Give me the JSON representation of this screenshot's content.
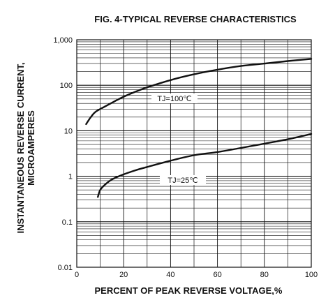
{
  "chart_data": {
    "type": "line",
    "title": "FIG. 4-TYPICAL REVERSE CHARACTERISTICS",
    "xlabel": "PERCENT OF PEAK REVERSE VOLTAGE,%",
    "ylabel_lines": [
      "INSTANTANEOUS REVERSE CURRENT,",
      "MICROAMPERES"
    ],
    "xlim": [
      0,
      100
    ],
    "ylim": [
      0.01,
      1000
    ],
    "yscale": "log",
    "x_ticks": [
      0,
      20,
      40,
      60,
      80,
      100
    ],
    "x_tick_labels": [
      "0",
      "20",
      "40",
      "60",
      "80",
      "100"
    ],
    "y_ticks": [
      0.01,
      0.1,
      1,
      10,
      100,
      1000
    ],
    "y_tick_labels": [
      "0.01",
      "0.1",
      "1",
      "10",
      "100",
      "1,000"
    ],
    "grid": true,
    "series": [
      {
        "name": "TJ=100℃",
        "x": [
          4,
          6,
          8,
          12,
          16,
          20,
          25,
          30,
          40,
          50,
          60,
          70,
          80,
          90,
          100
        ],
        "y": [
          14,
          20,
          26,
          34,
          44,
          56,
          72,
          90,
          130,
          175,
          220,
          265,
          300,
          340,
          380
        ]
      },
      {
        "name": "TJ=25℃",
        "x": [
          9,
          10,
          12,
          15,
          20,
          25,
          30,
          40,
          50,
          60,
          70,
          80,
          90,
          100
        ],
        "y": [
          0.35,
          0.5,
          0.65,
          0.85,
          1.1,
          1.35,
          1.6,
          2.2,
          2.9,
          3.4,
          4.2,
          5.2,
          6.5,
          8.5
        ]
      }
    ]
  }
}
